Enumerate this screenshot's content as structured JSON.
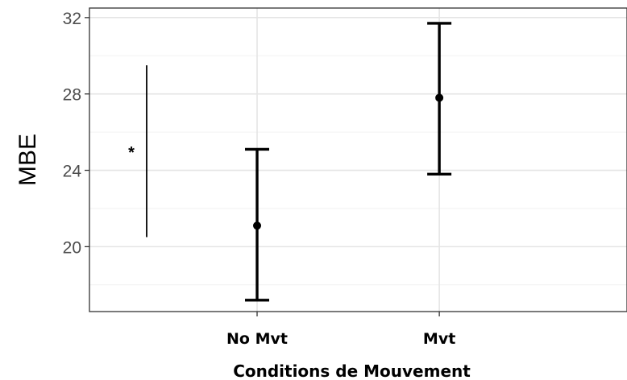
{
  "chart_data": {
    "type": "errorbar",
    "title": "",
    "xlabel": "Conditions de Mouvement",
    "ylabel": "MBE",
    "categories": [
      "No Mvt",
      "Mvt"
    ],
    "ylim": [
      16.6,
      32.5
    ],
    "yticks": [
      20,
      24,
      28,
      32
    ],
    "grid": true,
    "series": [
      {
        "points": [
          {
            "category": "No Mvt",
            "mean": 21.1,
            "lower": 17.2,
            "upper": 25.1
          },
          {
            "category": "Mvt",
            "mean": 27.8,
            "lower": 23.8,
            "upper": 31.7
          }
        ]
      }
    ],
    "annotation": {
      "text": "*",
      "bracket": {
        "y_low": 20.5,
        "y_high": 29.5
      }
    }
  }
}
